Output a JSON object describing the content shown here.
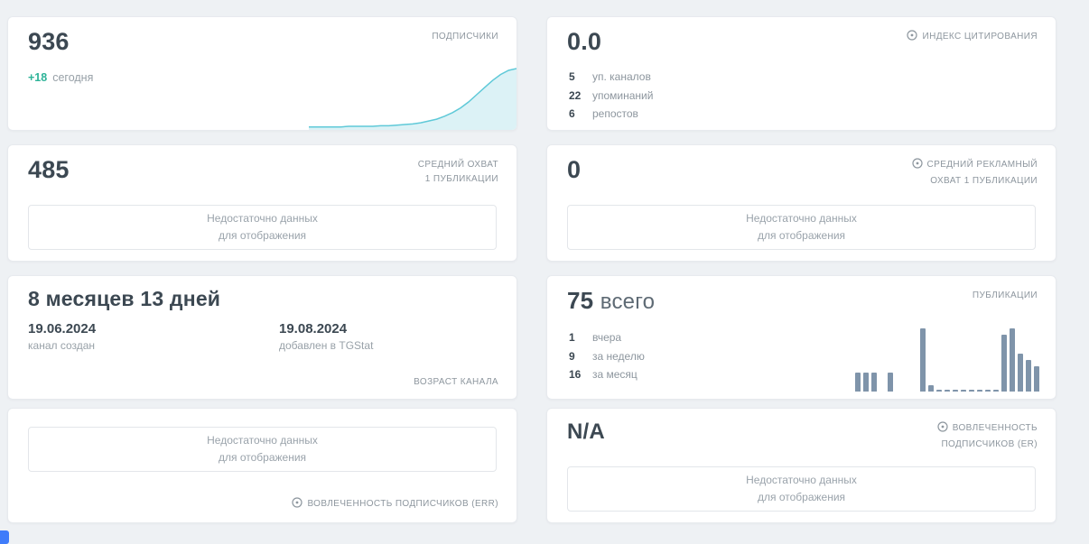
{
  "colors": {
    "area_line": "#5fc9d8",
    "area_fill": "#dcf2f6",
    "delta_green": "#2eb398",
    "bar": "#7f94aa",
    "blue_edge": "#3f7cfa"
  },
  "empty_state": {
    "line1": "Недостаточно данных",
    "line2": "для отображения"
  },
  "cards": {
    "subscribers": {
      "value": "936",
      "delta": "+18",
      "delta_suffix": "сегодня",
      "label": "ПОДПИСЧИКИ",
      "chart": {
        "type": "area",
        "line_color": "#5fc9d8",
        "fill_color": "#dcf2f6",
        "points": [
          2,
          2,
          2,
          2,
          2,
          3,
          3,
          3,
          3,
          4,
          4,
          5,
          6,
          7,
          9,
          12,
          15,
          20,
          26,
          34,
          44,
          56,
          68,
          80,
          90,
          97,
          100
        ]
      }
    },
    "citation": {
      "value": "0.0",
      "label": "ИНДЕКС ЦИТИРОВАНИЯ",
      "stats": [
        {
          "value": "5",
          "label": "уп. каналов"
        },
        {
          "value": "22",
          "label": "упоминаний"
        },
        {
          "value": "6",
          "label": "репостов"
        }
      ]
    },
    "avg_reach": {
      "value": "485",
      "label_line1": "СРЕДНИЙ ОХВАТ",
      "label_line2": "1 ПУБЛИКАЦИИ"
    },
    "avg_ad_reach": {
      "value": "0",
      "label_line1": "СРЕДНИЙ РЕКЛАМНЫЙ",
      "label_line2": "ОХВАТ 1 ПУБЛИКАЦИИ"
    },
    "channel_age": {
      "value": "8 месяцев 13 дней",
      "created_date": "19.06.2024",
      "created_label": "канал создан",
      "added_date": "19.08.2024",
      "added_label": "добавлен в TGStat",
      "label": "ВОЗРАСТ КАНАЛА"
    },
    "publications": {
      "value": "75",
      "value_suffix": "всего",
      "label": "ПУБЛИКАЦИИ",
      "stats": [
        {
          "value": "1",
          "label": "вчера"
        },
        {
          "value": "9",
          "label": "за неделю"
        },
        {
          "value": "16",
          "label": "за месяц"
        }
      ],
      "chart": {
        "type": "bar",
        "bar_color": "#7f94aa",
        "values": [
          3,
          3,
          3,
          0,
          3,
          0,
          0,
          0,
          10,
          1,
          0.3,
          0.3,
          0.3,
          0.3,
          0.3,
          0.3,
          0.3,
          0.3,
          9,
          10,
          6,
          5,
          4
        ]
      }
    },
    "err": {
      "label": "ВОВЛЕЧЕННОСТЬ ПОДПИСЧИКОВ (ERR)"
    },
    "er": {
      "value": "N/A",
      "label_line1": "ВОВЛЕЧЕННОСТЬ",
      "label_line2": "ПОДПИСЧИКОВ (ER)"
    }
  }
}
